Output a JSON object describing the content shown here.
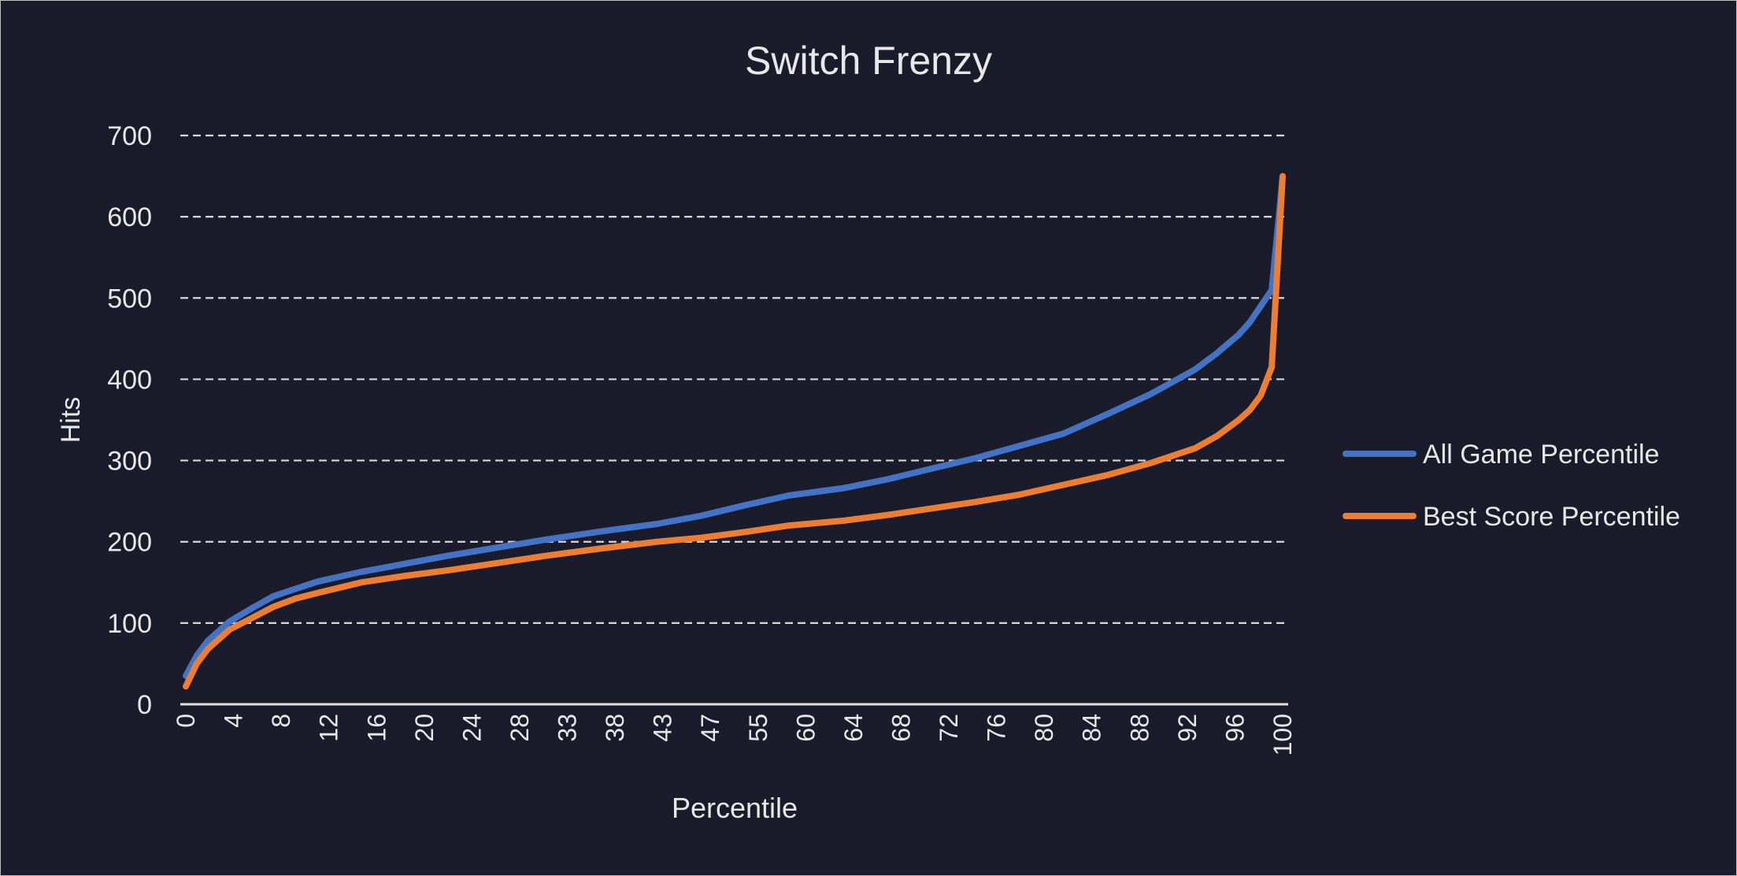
{
  "chart_data": {
    "type": "line",
    "title": "Switch Frenzy",
    "xlabel": "Percentile",
    "ylabel": "Hits",
    "ylim": [
      0,
      700
    ],
    "yticks": [
      0,
      100,
      200,
      300,
      400,
      500,
      600,
      700
    ],
    "xlim": [
      0,
      100
    ],
    "xtick_labels": [
      "0",
      "4",
      "8",
      "12",
      "16",
      "20",
      "24",
      "28",
      "33",
      "38",
      "43",
      "47",
      "55",
      "60",
      "64",
      "68",
      "72",
      "76",
      "80",
      "84",
      "88",
      "92",
      "96",
      "100"
    ],
    "grid": true,
    "legend_position": "right",
    "x": [
      0,
      1,
      2,
      4,
      6,
      8,
      10,
      12,
      16,
      20,
      24,
      28,
      33,
      38,
      43,
      47,
      51,
      55,
      60,
      64,
      68,
      72,
      76,
      80,
      84,
      88,
      92,
      94,
      96,
      97,
      98,
      99,
      100
    ],
    "series": [
      {
        "name": "All Game Percentile",
        "color": "#4472c4",
        "values": [
          35,
          60,
          78,
          102,
          118,
          133,
          142,
          151,
          163,
          173,
          183,
          192,
          203,
          213,
          222,
          232,
          245,
          257,
          266,
          277,
          290,
          303,
          318,
          333,
          357,
          382,
          412,
          432,
          455,
          470,
          490,
          510,
          650
        ]
      },
      {
        "name": "Best Score Percentile",
        "color": "#ed7d31",
        "values": [
          22,
          50,
          68,
          92,
          106,
          120,
          130,
          137,
          150,
          158,
          165,
          173,
          183,
          192,
          200,
          205,
          212,
          220,
          226,
          233,
          241,
          249,
          258,
          270,
          282,
          297,
          315,
          330,
          350,
          362,
          380,
          415,
          650
        ]
      }
    ]
  }
}
